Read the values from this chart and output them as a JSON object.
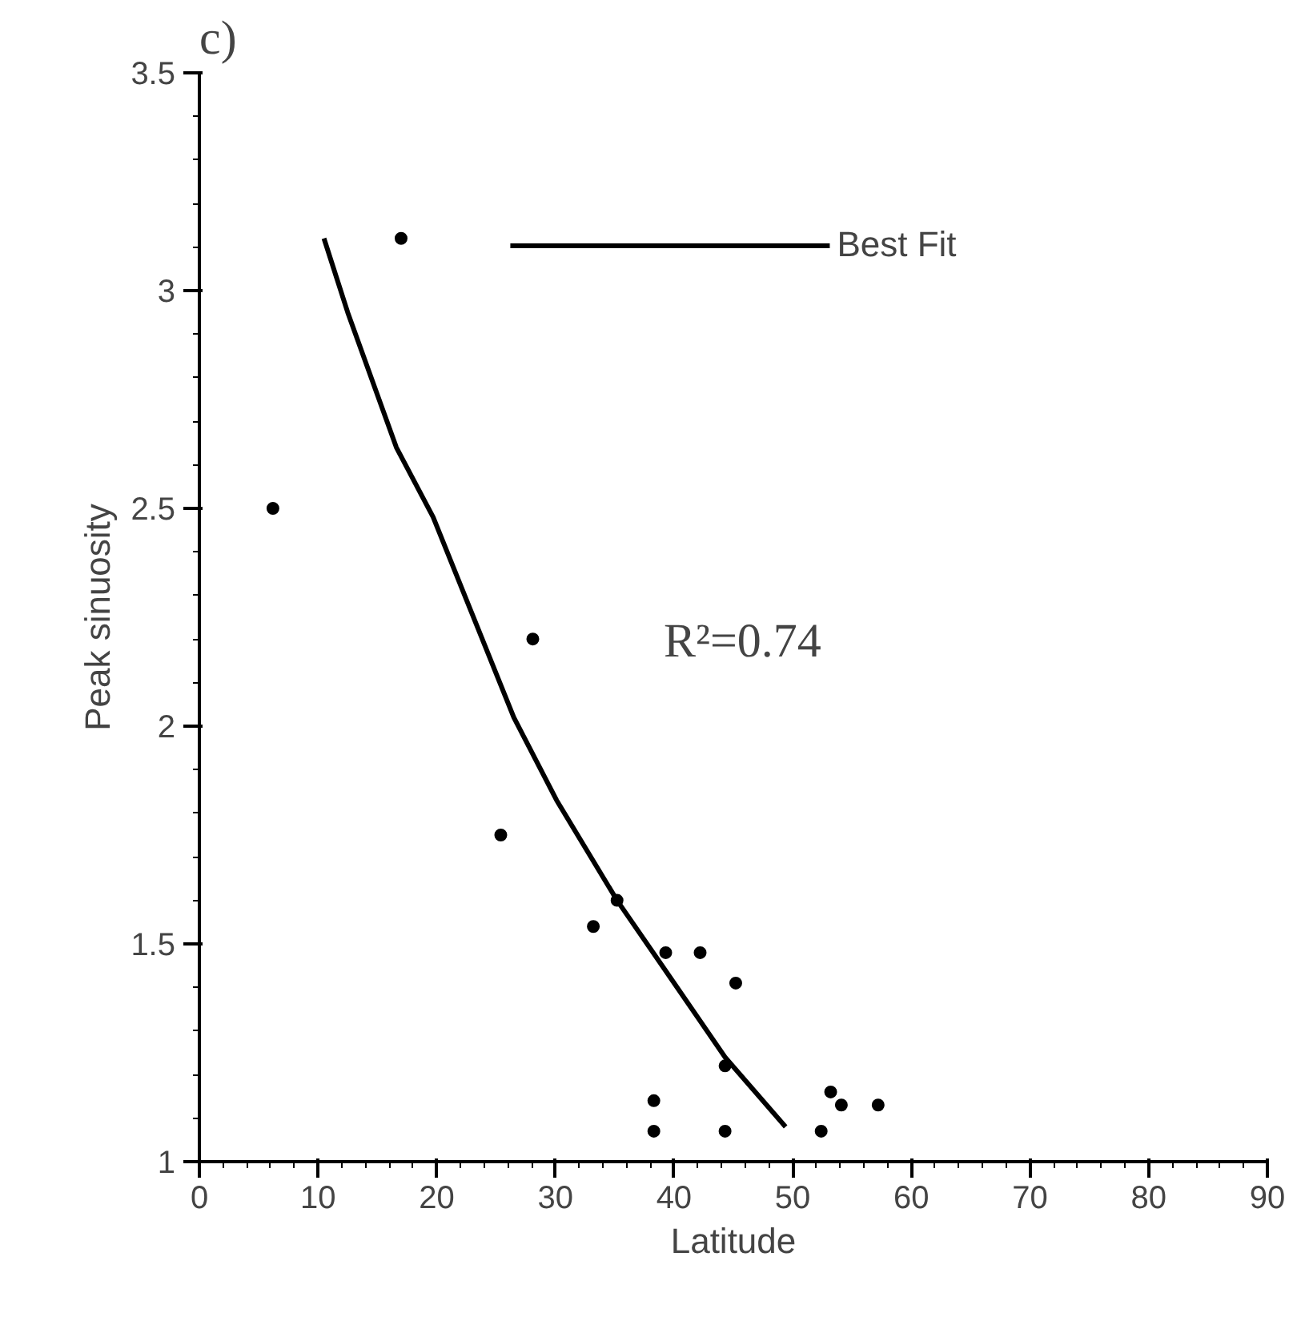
{
  "chart_data": {
    "type": "scatter",
    "title": "c)",
    "xlabel": "Latitude",
    "ylabel": "Peak sinuosity",
    "xlim": [
      0,
      90
    ],
    "xticks": [
      0,
      10,
      20,
      30,
      40,
      50,
      60,
      70,
      80,
      90
    ],
    "ylim": [
      1,
      3.5
    ],
    "yticks": [
      1,
      1.5,
      2,
      2.5,
      3,
      3.5
    ],
    "grid": false,
    "legend": "top",
    "annotations": [
      "R²=0.74"
    ],
    "series": [
      {
        "marker": "circle",
        "color": "#000000",
        "x": [
          6.2,
          17,
          28.1,
          25.4,
          33.2,
          35.2,
          39.3,
          42.2,
          45.2,
          44.3,
          38.3,
          38.3,
          44.3,
          52.4,
          53.2,
          54.1,
          57.2
        ],
        "values": [
          2.5,
          3.12,
          2.2,
          1.75,
          1.54,
          1.6,
          1.48,
          1.48,
          1.41,
          1.22,
          1.14,
          1.07,
          1.07,
          1.07,
          1.16,
          1.13,
          1.13
        ]
      },
      {
        "type": "line",
        "name": "Best Fit",
        "color": "#000000",
        "line_style": "solid",
        "x": [
          10.5,
          12.5,
          16.6,
          19.7,
          26.5,
          30.1,
          35.2,
          39,
          44.3,
          49.4
        ],
        "values": [
          3.12,
          2.95,
          2.64,
          2.48,
          2.02,
          1.83,
          1.6,
          1.45,
          1.24,
          1.08
        ]
      }
    ]
  }
}
